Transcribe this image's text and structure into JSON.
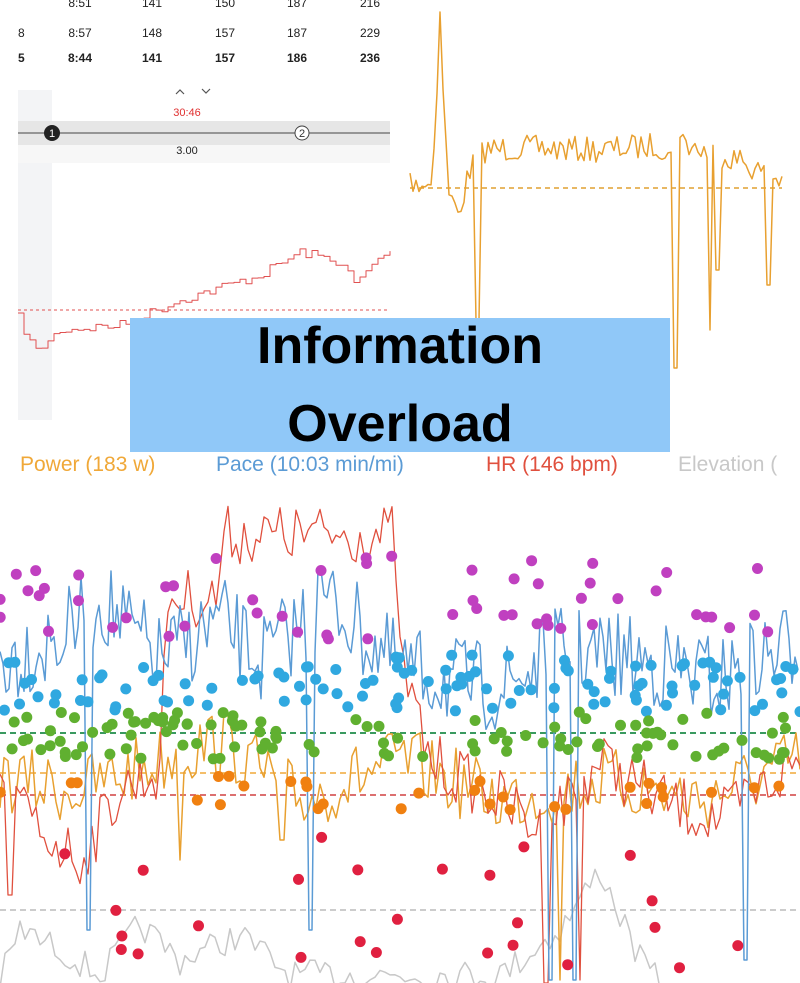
{
  "table": {
    "rows": [
      {
        "cells": [
          "8:51",
          "141",
          "150",
          "187",
          "216"
        ]
      },
      {
        "lap": "8",
        "cells": [
          "8:57",
          "148",
          "157",
          "187",
          "229"
        ]
      },
      {
        "lap": "5",
        "cells": [
          "8:44",
          "141",
          "157",
          "186",
          "236"
        ],
        "bold": true
      }
    ]
  },
  "slider": {
    "time": "30:46",
    "distance": "3.00",
    "markers": [
      "1",
      "2"
    ]
  },
  "banner": {
    "title": "Information Overload"
  },
  "legend": [
    {
      "name": "Power (183 w)",
      "color": "#f0a838"
    },
    {
      "name": "Pace (10:03 min/mi)",
      "color": "#5b9bd5"
    },
    {
      "name": "HR (146 bpm)",
      "color": "#e0503e"
    },
    {
      "name": "Elevation (",
      "color": "#c8c8c8"
    }
  ]
}
